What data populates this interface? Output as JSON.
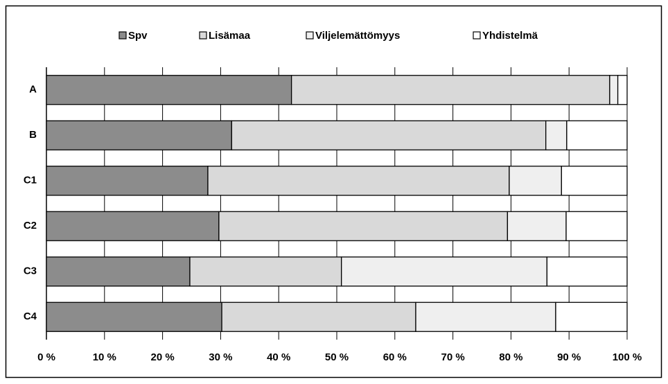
{
  "chart_data": {
    "type": "stacked_barh",
    "categories": [
      "A",
      "B",
      "C1",
      "C2",
      "C3",
      "C4"
    ],
    "series": [
      {
        "name": "Spv",
        "color": "#8c8c8c",
        "values": [
          42.2,
          31.9,
          27.8,
          29.7,
          24.7,
          30.2
        ]
      },
      {
        "name": "Lisämaa",
        "color": "#d9d9d9",
        "values": [
          54.8,
          54.1,
          51.9,
          49.7,
          26.1,
          33.4
        ]
      },
      {
        "name": "Viljelemättömyys",
        "color": "#efefef",
        "values": [
          1.4,
          3.6,
          9.0,
          10.1,
          35.4,
          24.1
        ]
      },
      {
        "name": "Yhdistelmä",
        "color": "#ffffff",
        "values": [
          1.6,
          10.4,
          11.3,
          10.5,
          13.8,
          12.3
        ]
      }
    ],
    "xlim": [
      0,
      100
    ],
    "xticks": [
      {
        "value": 0,
        "label": "0 %"
      },
      {
        "value": 10,
        "label": "10 %"
      },
      {
        "value": 20,
        "label": "20 %"
      },
      {
        "value": 30,
        "label": "30 %"
      },
      {
        "value": 40,
        "label": "40 %"
      },
      {
        "value": 50,
        "label": "50 %"
      },
      {
        "value": 60,
        "label": "60 %"
      },
      {
        "value": 70,
        "label": "70 %"
      },
      {
        "value": 80,
        "label": "80 %"
      },
      {
        "value": 90,
        "label": "90 %"
      },
      {
        "value": 100,
        "label": "100 %"
      }
    ],
    "grid": true,
    "legend": "top"
  }
}
